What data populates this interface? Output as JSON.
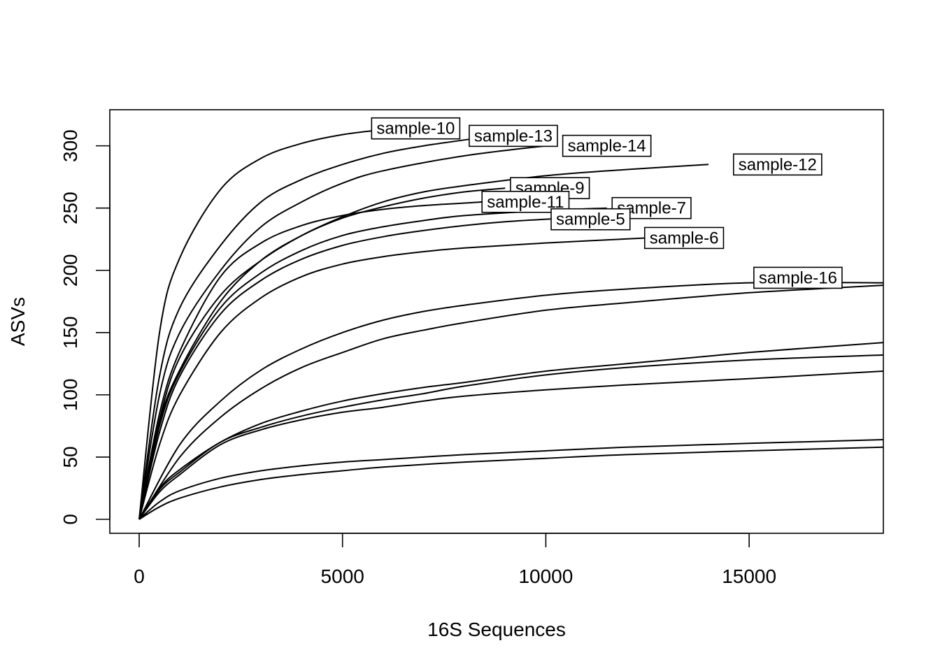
{
  "chart_data": {
    "type": "line",
    "title": "",
    "xlabel": "16S Sequences",
    "ylabel": "ASVs",
    "xlim": [
      0,
      18300
    ],
    "ylim": [
      0,
      320
    ],
    "xticks": [
      0,
      5000,
      10000,
      15000
    ],
    "yticks": [
      0,
      50,
      100,
      150,
      200,
      250,
      300
    ],
    "grid": false,
    "legend": "none",
    "series": [
      {
        "name": "sample-10",
        "x": [
          0,
          500,
          1000,
          2000,
          3000,
          4000,
          5000,
          6000
        ],
        "y": [
          0,
          150,
          210,
          265,
          290,
          302,
          309,
          313
        ]
      },
      {
        "name": "sample-13",
        "x": [
          0,
          500,
          1000,
          2000,
          3000,
          4000,
          5000,
          6000,
          7000,
          8500
        ],
        "y": [
          0,
          115,
          170,
          220,
          255,
          273,
          285,
          294,
          300,
          307
        ]
      },
      {
        "name": "sample-14",
        "x": [
          0,
          500,
          1000,
          2000,
          3000,
          4000,
          5000,
          6000,
          8000,
          10000
        ],
        "y": [
          0,
          100,
          150,
          200,
          235,
          255,
          270,
          280,
          292,
          300
        ]
      },
      {
        "name": "sample-12",
        "x": [
          0,
          500,
          1000,
          2000,
          3000,
          4000,
          5000,
          6000,
          7000,
          8000,
          10000,
          12000,
          14000
        ],
        "y": [
          0,
          80,
          130,
          180,
          208,
          228,
          243,
          255,
          263,
          268,
          276,
          281,
          285
        ]
      },
      {
        "name": "sample-9",
        "x": [
          0,
          500,
          1000,
          2000,
          3000,
          4000,
          5000,
          6000,
          7000,
          8000,
          9000
        ],
        "y": [
          0,
          78,
          120,
          175,
          208,
          228,
          242,
          251,
          258,
          263,
          266
        ]
      },
      {
        "name": "sample-11",
        "x": [
          0,
          500,
          1000,
          2000,
          3000,
          4000,
          5000,
          6000,
          7000,
          8500
        ],
        "y": [
          0,
          85,
          135,
          195,
          222,
          236,
          244,
          249,
          252,
          255
        ]
      },
      {
        "name": "sample-7",
        "x": [
          0,
          500,
          1000,
          2000,
          3000,
          4000,
          5000,
          6000,
          7000,
          8000,
          10000,
          11500
        ],
        "y": [
          0,
          75,
          118,
          170,
          198,
          216,
          228,
          235,
          240,
          244,
          248,
          250
        ]
      },
      {
        "name": "sample-5",
        "x": [
          0,
          500,
          1000,
          2000,
          3000,
          4000,
          5000,
          6000,
          7000,
          8000,
          9000,
          10500
        ],
        "y": [
          0,
          70,
          115,
          165,
          192,
          209,
          220,
          227,
          232,
          236,
          239,
          242
        ]
      },
      {
        "name": "sample-6",
        "x": [
          0,
          500,
          1000,
          2000,
          3000,
          4000,
          5000,
          6000,
          7000,
          8000,
          10000,
          12500
        ],
        "y": [
          0,
          60,
          100,
          150,
          178,
          195,
          205,
          211,
          215,
          218,
          222,
          226
        ]
      },
      {
        "name": "sample-16",
        "x": [
          0,
          1000,
          2000,
          3000,
          4000,
          5000,
          6000,
          7000,
          8000,
          10000,
          12000,
          15000,
          18300
        ],
        "y": [
          0,
          60,
          95,
          120,
          137,
          150,
          160,
          167,
          172,
          180,
          185,
          190,
          190
        ]
      },
      {
        "name": "",
        "x": [
          0,
          1000,
          2000,
          3000,
          4000,
          5000,
          6000,
          7000,
          8000,
          10000,
          12000,
          15000,
          18300
        ],
        "y": [
          0,
          50,
          82,
          105,
          122,
          134,
          145,
          152,
          158,
          168,
          174,
          182,
          188
        ]
      },
      {
        "name": "",
        "x": [
          0,
          500,
          1000,
          2000,
          3000,
          4000,
          5000,
          6000,
          7000,
          8000,
          10000,
          12000,
          15000,
          18300
        ],
        "y": [
          0,
          25,
          40,
          62,
          77,
          87,
          95,
          101,
          106,
          110,
          119,
          125,
          134,
          142
        ]
      },
      {
        "name": "",
        "x": [
          0,
          500,
          1000,
          2000,
          3000,
          4000,
          5000,
          6000,
          7000,
          8000,
          10000,
          12000,
          15000,
          18300
        ],
        "y": [
          0,
          24,
          38,
          62,
          74,
          83,
          90,
          96,
          101,
          107,
          116,
          122,
          128,
          132
        ]
      },
      {
        "name": "",
        "x": [
          0,
          500,
          1000,
          2000,
          3000,
          4000,
          5000,
          6000,
          7000,
          8000,
          10000,
          12000,
          15000,
          18300
        ],
        "y": [
          0,
          22,
          36,
          60,
          72,
          80,
          86,
          90,
          95,
          99,
          104,
          108,
          113,
          119
        ]
      },
      {
        "name": "",
        "x": [
          0,
          500,
          1000,
          2000,
          3000,
          4000,
          5000,
          6000,
          8000,
          10000,
          12000,
          15000,
          18300
        ],
        "y": [
          0,
          14,
          23,
          33,
          39,
          43,
          46,
          48,
          52,
          55,
          58,
          61,
          64
        ]
      },
      {
        "name": "",
        "x": [
          0,
          500,
          1000,
          2000,
          3000,
          4000,
          5000,
          6000,
          8000,
          10000,
          12000,
          15000,
          18300
        ],
        "y": [
          0,
          10,
          17,
          26,
          32,
          36,
          39,
          42,
          46,
          49,
          52,
          55,
          58
        ]
      }
    ],
    "annotations": [
      {
        "text": "sample-10",
        "x": 6800,
        "y": 314
      },
      {
        "text": "sample-13",
        "x": 9200,
        "y": 308
      },
      {
        "text": "sample-14",
        "x": 11500,
        "y": 300
      },
      {
        "text": "sample-12",
        "x": 15700,
        "y": 285
      },
      {
        "text": "sample-9",
        "x": 10100,
        "y": 266
      },
      {
        "text": "sample-11",
        "x": 9500,
        "y": 255
      },
      {
        "text": "sample-7",
        "x": 12600,
        "y": 250
      },
      {
        "text": "sample-5",
        "x": 11100,
        "y": 241
      },
      {
        "text": "sample-6",
        "x": 13400,
        "y": 226
      },
      {
        "text": "sample-16",
        "x": 16200,
        "y": 194
      }
    ]
  }
}
